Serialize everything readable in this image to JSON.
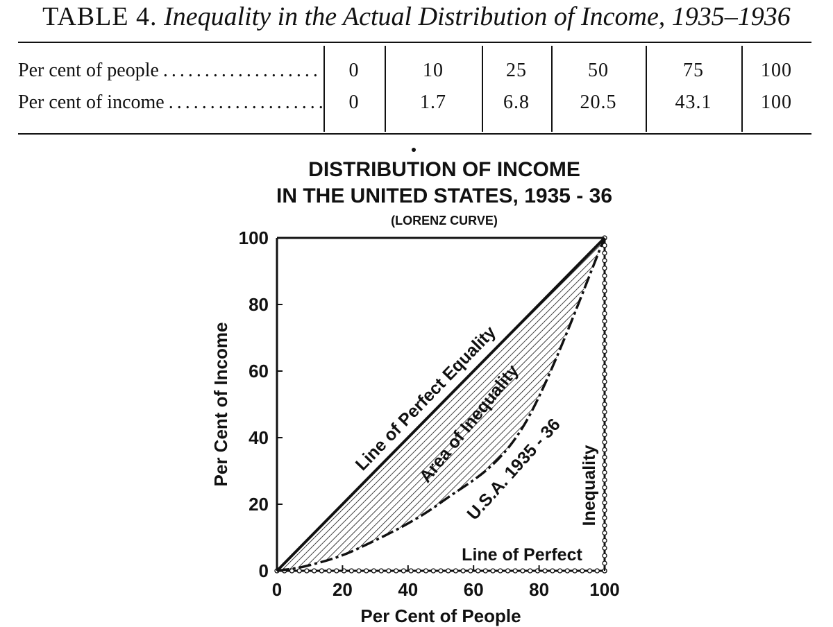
{
  "table": {
    "label": "TABLE 4.",
    "title": "Inequality in the Actual Distribution of Income, 1935–1936",
    "rows": [
      {
        "label": "Per cent of people",
        "values": [
          "0",
          "10",
          "25",
          "50",
          "75",
          "100"
        ]
      },
      {
        "label": "Per cent of income",
        "values": [
          "0",
          "1.7",
          "6.8",
          "20.5",
          "43.1",
          "100"
        ]
      }
    ]
  },
  "chart_data": {
    "type": "line",
    "title": "DISTRIBUTION OF INCOME",
    "subtitle": "IN THE UNITED STATES, 1935 - 36",
    "note": "(LORENZ CURVE)",
    "xlabel": "Per Cent of People",
    "ylabel": "Per Cent of Income",
    "xlim": [
      0,
      100
    ],
    "ylim": [
      0,
      100
    ],
    "xticks": [
      "0",
      "20",
      "40",
      "60",
      "80",
      "100"
    ],
    "yticks": [
      "0",
      "20",
      "40",
      "60",
      "80",
      "100"
    ],
    "series": [
      {
        "name": "Line of Perfect Equality",
        "x": [
          0,
          100
        ],
        "y": [
          0,
          100
        ]
      },
      {
        "name": "U.S.A. 1935 - 36",
        "x": [
          0,
          10,
          25,
          50,
          75,
          100
        ],
        "y": [
          0,
          1.7,
          6.8,
          20.5,
          43.1,
          100
        ]
      },
      {
        "name": "Line of Perfect Inequality",
        "x": [
          0,
          100,
          100
        ],
        "y": [
          0,
          0,
          100
        ]
      }
    ],
    "annotations": {
      "equality": "Line of Perfect Equality",
      "area": "Area of Inequality",
      "usa": "U.S.A. 1935 - 36",
      "perfect": "Line of Perfect",
      "inequality": "Inequality"
    }
  }
}
